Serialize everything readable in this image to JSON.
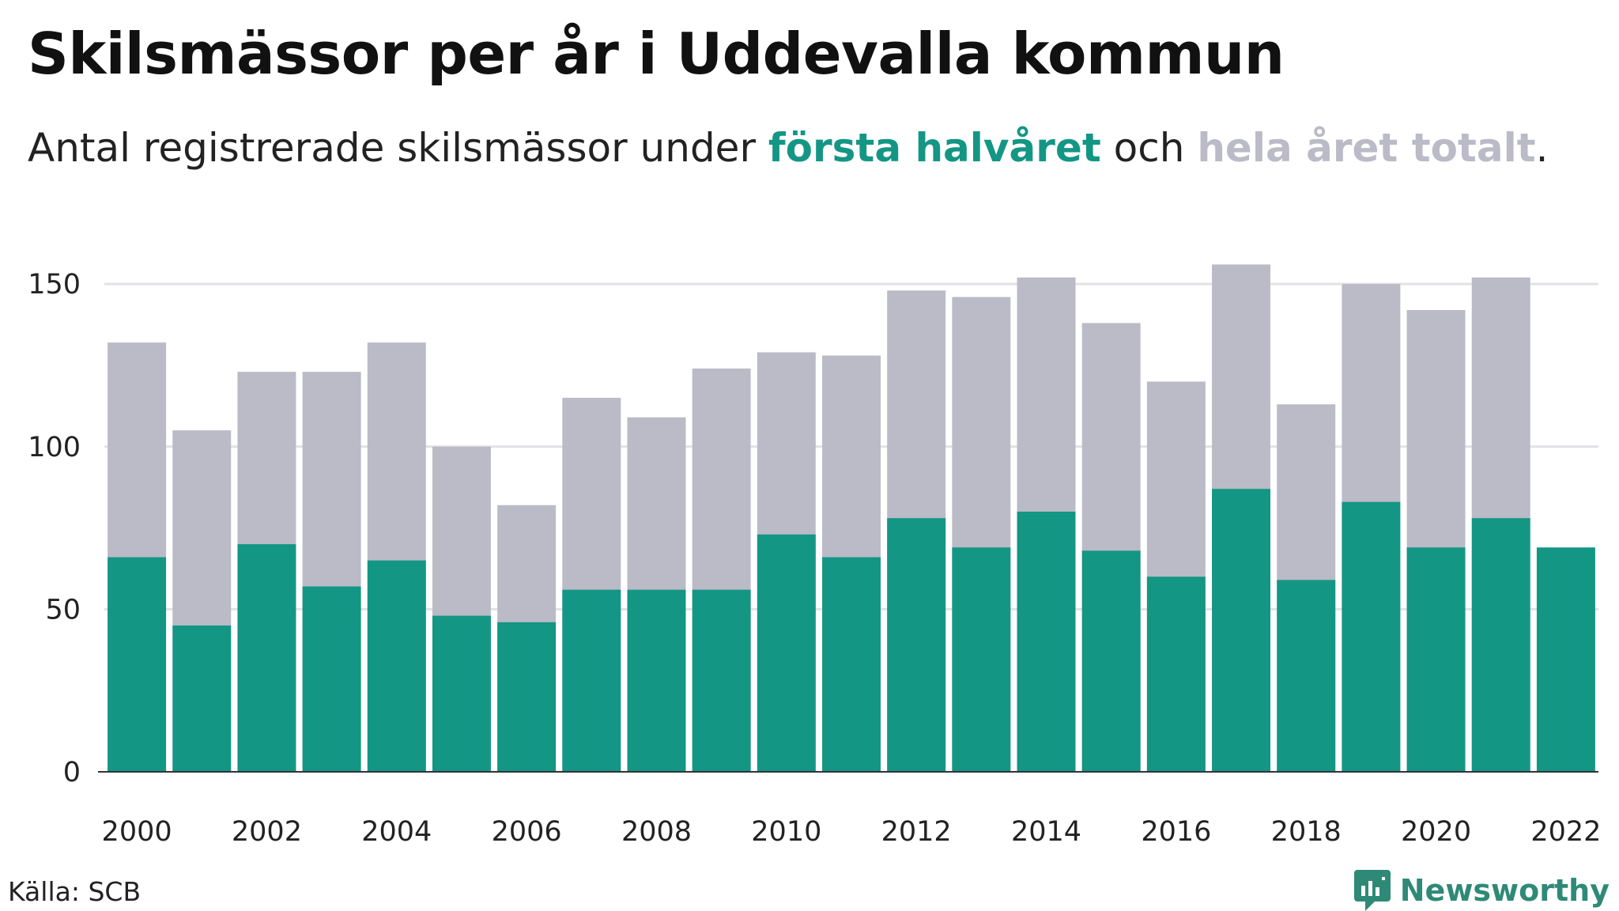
{
  "header": {
    "title": "Skilsmässor per år i Uddevalla kommun",
    "subtitle_prefix": "Antal registrerade skilsmässor under ",
    "subtitle_highlight_first": "första halvåret",
    "subtitle_middle": " och ",
    "subtitle_highlight_total": "hela året totalt",
    "subtitle_suffix": "."
  },
  "footer": {
    "source": "Källa: SCB",
    "brand": "Newsworthy",
    "brand_icon": "newsworthy-logo-icon"
  },
  "colors": {
    "first_half": "#149685",
    "total": "#bbbac7",
    "gridline": "#e2e2e6",
    "axis": "#333333",
    "brand": "#2e8a77"
  },
  "chart_data": {
    "type": "bar",
    "stacked": "overlay",
    "categories": [
      "2000",
      "2001",
      "2002",
      "2003",
      "2004",
      "2005",
      "2006",
      "2007",
      "2008",
      "2009",
      "2010",
      "2011",
      "2012",
      "2013",
      "2014",
      "2015",
      "2016",
      "2017",
      "2018",
      "2019",
      "2020",
      "2021",
      "2022"
    ],
    "x_tick_labels": [
      "2000",
      "2002",
      "2004",
      "2006",
      "2008",
      "2010",
      "2012",
      "2014",
      "2016",
      "2018",
      "2020",
      "2022"
    ],
    "series": [
      {
        "name": "hela året totalt",
        "values": [
          132,
          105,
          123,
          123,
          132,
          100,
          82,
          115,
          109,
          124,
          129,
          128,
          148,
          146,
          152,
          138,
          120,
          156,
          113,
          150,
          142,
          152,
          null
        ]
      },
      {
        "name": "första halvåret",
        "values": [
          66,
          45,
          70,
          57,
          65,
          48,
          46,
          56,
          56,
          56,
          73,
          66,
          78,
          69,
          80,
          68,
          60,
          87,
          59,
          83,
          69,
          78,
          69
        ]
      }
    ],
    "ylim": [
      0,
      160
    ],
    "yticks": [
      0,
      50,
      100,
      150
    ],
    "ytick_labels": [
      "0",
      "50",
      "100",
      "150"
    ],
    "grid": true,
    "title": "Skilsmässor per år i Uddevalla kommun",
    "xlabel": "",
    "ylabel": ""
  }
}
